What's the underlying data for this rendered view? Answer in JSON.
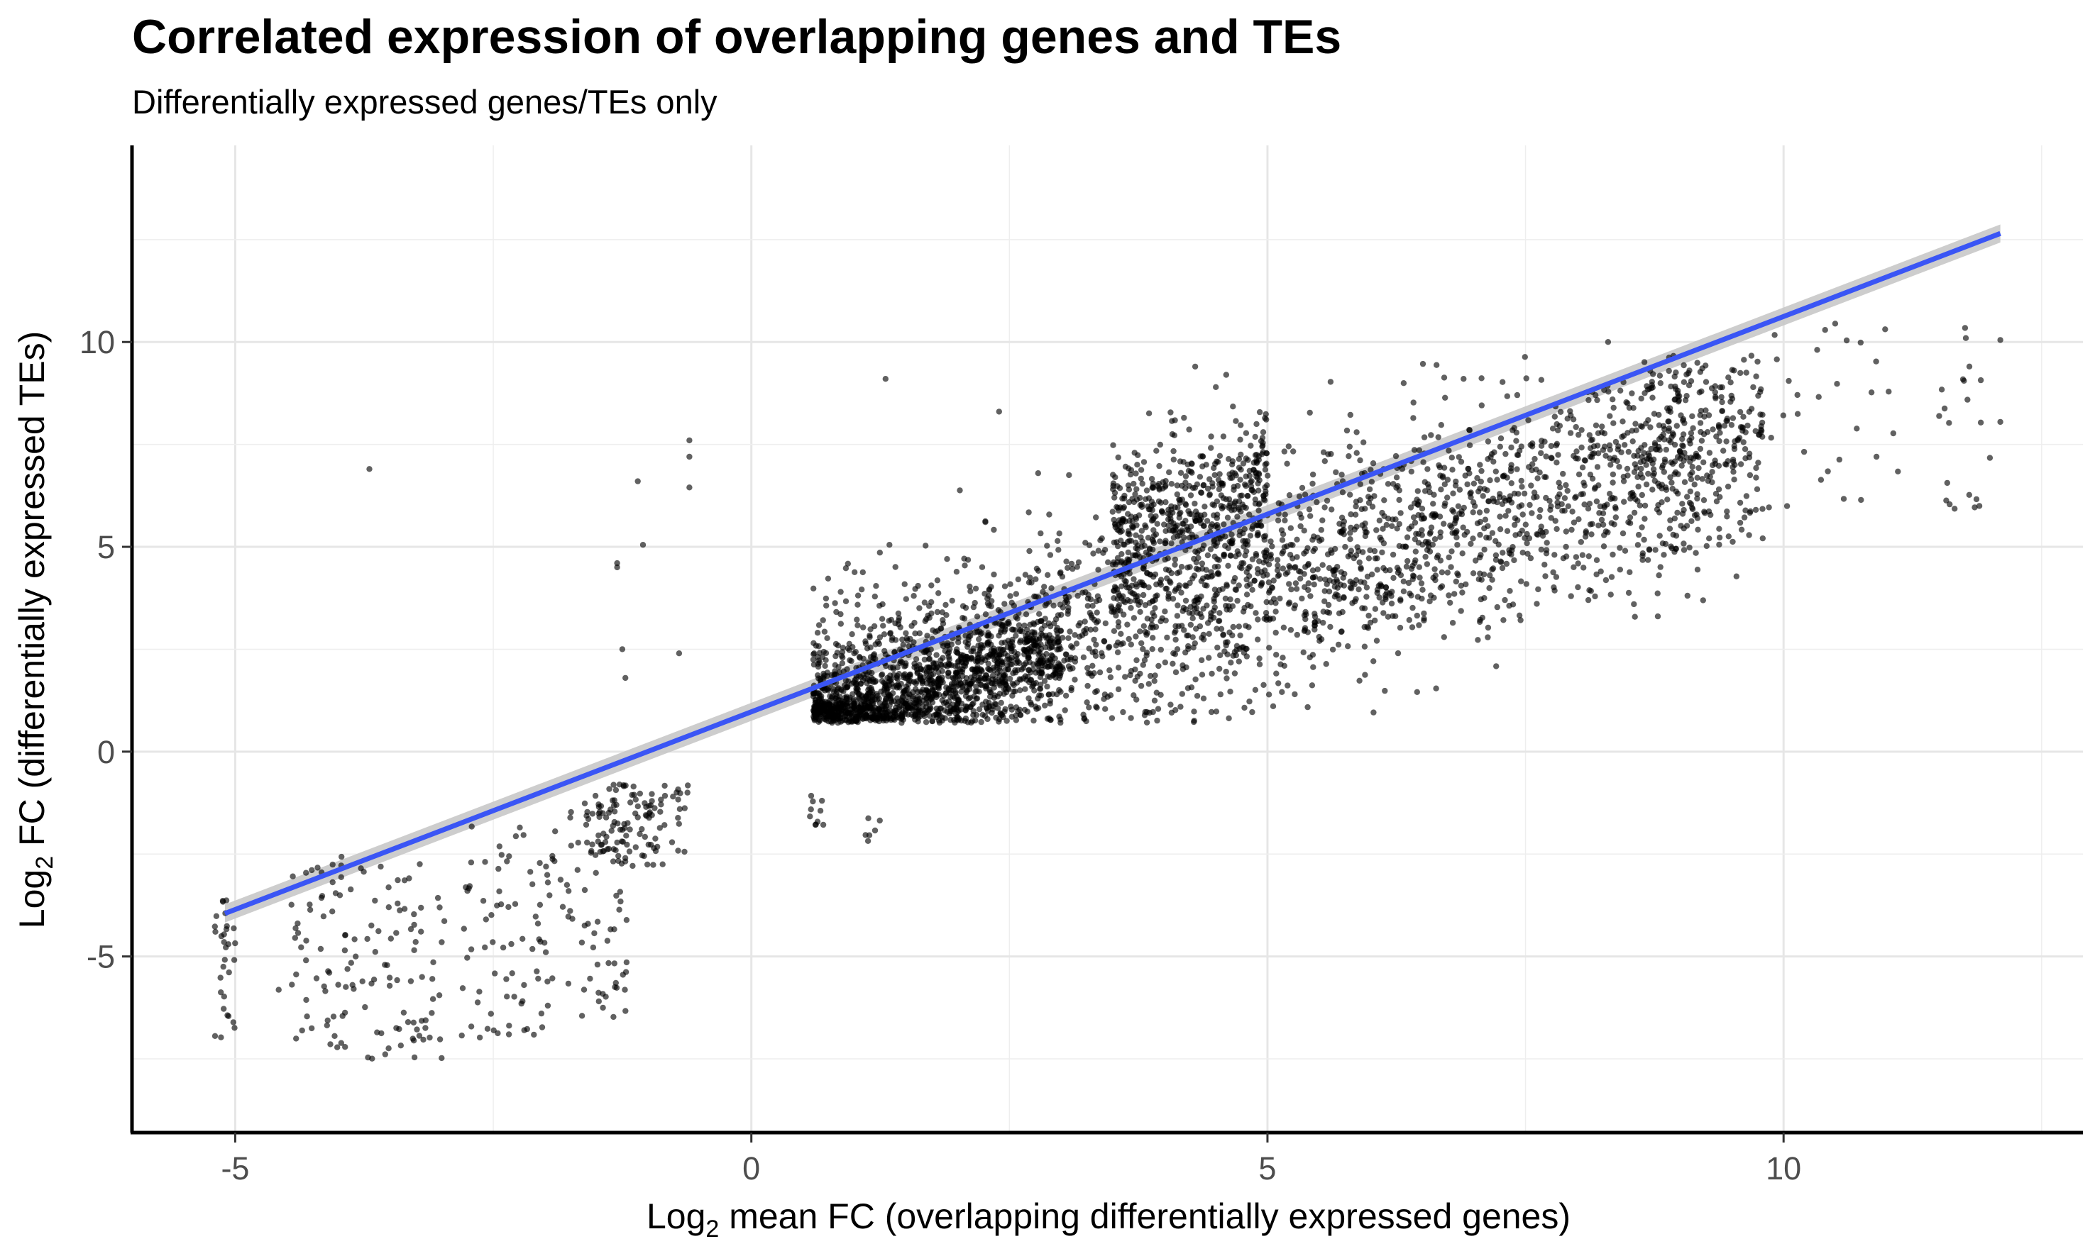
{
  "chart_data": {
    "type": "scatter",
    "title": "Correlated expression of overlapping genes and TEs",
    "subtitle": "Differentially expressed genes/TEs only",
    "xlabel": {
      "prefix": "Log",
      "sub": "2",
      "rest": " mean FC (overlapping differentially expressed genes)"
    },
    "ylabel": {
      "prefix": "Log",
      "sub": "2",
      "rest": " FC (differentially expressed TEs)"
    },
    "xlim": [
      -6.0,
      12.9
    ],
    "ylim": [
      -9.3,
      14.8
    ],
    "x_ticks": [
      -5,
      0,
      5,
      10
    ],
    "y_ticks": [
      -5,
      0,
      5,
      10
    ],
    "x_tick_labels": [
      "-5",
      "0",
      "5",
      "10"
    ],
    "y_tick_labels": [
      "-5",
      "0",
      "5",
      "10"
    ],
    "grid": true,
    "point_color": "#000000",
    "fit_line": {
      "x": [
        -5.1,
        12.1
      ],
      "y": [
        -3.95,
        12.65
      ],
      "color": "#3a55f5",
      "band_color": "#c4c4c4"
    },
    "clusters": [
      {
        "x": [
          -5.2,
          -5.0
        ],
        "y": [
          -7.0,
          -3.5
        ],
        "n": 30,
        "dist": "u"
      },
      {
        "x": [
          -4.6,
          -3.0
        ],
        "y": [
          -7.5,
          -2.4
        ],
        "n": 130,
        "dist": "u"
      },
      {
        "x": [
          -3.0,
          -2.0
        ],
        "y": [
          -7.0,
          -1.8
        ],
        "n": 70,
        "dist": "u"
      },
      {
        "x": [
          -2.0,
          -1.2
        ],
        "y": [
          -6.6,
          -1.2
        ],
        "n": 80,
        "dist": "u"
      },
      {
        "x": [
          -1.6,
          -0.6
        ],
        "y": [
          -2.8,
          -0.8
        ],
        "n": 110,
        "dist": "u"
      },
      {
        "x": [
          0.55,
          0.7
        ],
        "y": [
          -1.8,
          -1.0
        ],
        "n": 10,
        "dist": "u"
      },
      {
        "x": [
          1.1,
          1.25
        ],
        "y": [
          -2.6,
          -1.6
        ],
        "n": 6,
        "dist": "u"
      },
      {
        "x": [
          0.6,
          9.8
        ],
        "y": [
          0.7,
          9.8
        ],
        "n": 2700,
        "dist": "band",
        "slope": 0.72,
        "intercept": 0.6,
        "sd": 1.35
      },
      {
        "x": [
          0.6,
          3.0
        ],
        "y": [
          0.8,
          3.2
        ],
        "n": 900,
        "dist": "band",
        "slope": 0.62,
        "intercept": 0.55,
        "sd": 0.55
      },
      {
        "x": [
          3.5,
          5.0
        ],
        "y": [
          3.5,
          8.5
        ],
        "n": 500,
        "dist": "band",
        "slope": 0.7,
        "intercept": 2.9,
        "sd": 1.0
      },
      {
        "x": [
          8.6,
          9.2
        ],
        "y": [
          4.8,
          9.4
        ],
        "n": 80,
        "dist": "u"
      },
      {
        "x": [
          9.6,
          12.0
        ],
        "y": [
          5.8,
          10.4
        ],
        "n": 50,
        "dist": "u"
      }
    ],
    "outliers": [
      [
        -3.7,
        6.9
      ],
      [
        -1.3,
        4.5
      ],
      [
        -1.25,
        2.5
      ],
      [
        -1.22,
        1.8
      ],
      [
        -1.3,
        4.6
      ],
      [
        -1.1,
        6.6
      ],
      [
        -1.05,
        5.05
      ],
      [
        -0.6,
        7.6
      ],
      [
        -0.6,
        7.2
      ],
      [
        -0.6,
        6.45
      ],
      [
        -0.7,
        2.4
      ],
      [
        1.3,
        9.1
      ],
      [
        4.3,
        9.4
      ],
      [
        4.5,
        8.9
      ],
      [
        6.9,
        9.1
      ],
      [
        8.3,
        10.0
      ],
      [
        8.55,
        3.6
      ],
      [
        9.15,
        4.85
      ],
      [
        10.5,
        10.45
      ],
      [
        10.05,
        9.05
      ],
      [
        10.9,
        7.2
      ],
      [
        12.1,
        10.05
      ],
      [
        12.1,
        8.05
      ],
      [
        7.3,
        3.7
      ],
      [
        5.5,
        2.8
      ],
      [
        3.1,
        1.5
      ],
      [
        6.2,
        3.8
      ],
      [
        7.1,
        3.75
      ],
      [
        4.6,
        9.2
      ],
      [
        2.4,
        8.3
      ]
    ]
  }
}
